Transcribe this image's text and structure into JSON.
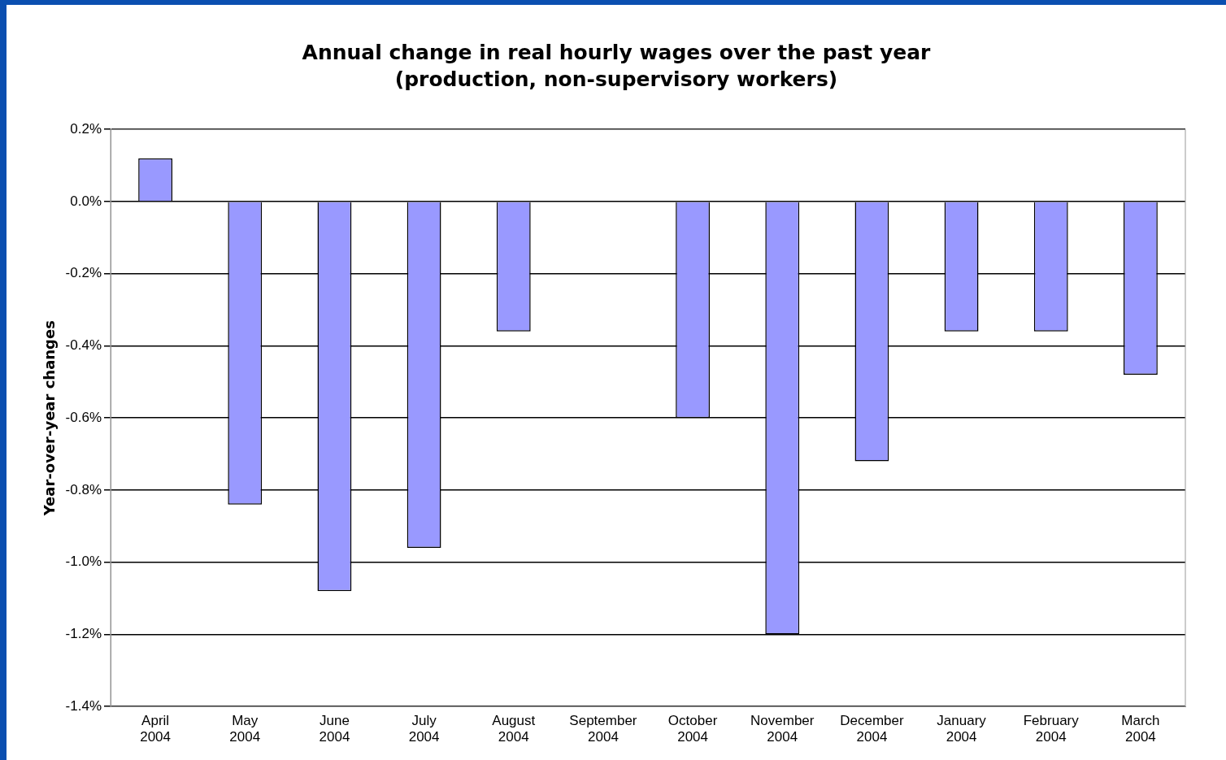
{
  "chart_data": {
    "type": "bar",
    "title": "Annual change in real hourly wages over the past year",
    "subtitle": "(production, non-supervisory workers)",
    "ylabel": "Year-over-year changes",
    "categories": [
      "April 2004",
      "May 2004",
      "June 2004",
      "July 2004",
      "August 2004",
      "September 2004",
      "October 2004",
      "November 2004",
      "December 2004",
      "January 2004",
      "February 2004",
      "March 2004"
    ],
    "values": [
      0.12,
      -0.84,
      -1.08,
      -0.96,
      -0.36,
      0,
      -0.6,
      -1.2,
      -0.72,
      -0.36,
      -0.36,
      -0.48
    ],
    "color": "#9999ff",
    "ylim": [
      -1.4,
      0.2
    ],
    "yticks": [
      {
        "value": 0.2,
        "label": "0.2%"
      },
      {
        "value": 0,
        "label": "0.0%"
      },
      {
        "value": -0.2,
        "label": "-0.2%"
      },
      {
        "value": -0.4,
        "label": "-0.4%"
      },
      {
        "value": -0.6,
        "label": "-0.6%"
      },
      {
        "value": -0.8,
        "label": "-0.8%"
      },
      {
        "value": -1,
        "label": "-1.0%"
      },
      {
        "value": -1.2,
        "label": "-1.2%"
      },
      {
        "value": -1.4,
        "label": "-1.4%"
      }
    ],
    "grid": "y",
    "legend": false
  }
}
